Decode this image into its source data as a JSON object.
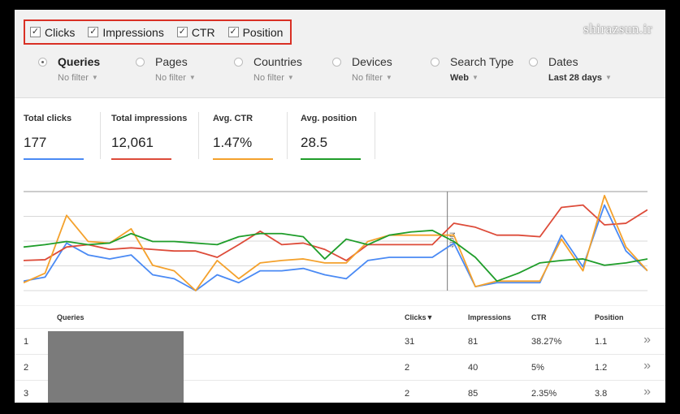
{
  "metric_toggles": [
    {
      "label": "Clicks",
      "checked": true
    },
    {
      "label": "Impressions",
      "checked": true
    },
    {
      "label": "CTR",
      "checked": true
    },
    {
      "label": "Position",
      "checked": true
    }
  ],
  "watermark": "shirazsun.ir",
  "filters": [
    {
      "label": "Queries",
      "sub": "No filter",
      "selected": true
    },
    {
      "label": "Pages",
      "sub": "No filter",
      "selected": false
    },
    {
      "label": "Countries",
      "sub": "No filter",
      "selected": false
    },
    {
      "label": "Devices",
      "sub": "No filter",
      "selected": false
    },
    {
      "label": "Search Type",
      "sub": "Web",
      "selected": false
    },
    {
      "label": "Dates",
      "sub": "Last 28 days",
      "selected": false
    }
  ],
  "summary": [
    {
      "title": "Total clicks",
      "value": "177",
      "color": "#4a8af4"
    },
    {
      "title": "Total impressions",
      "value": "12,061",
      "color": "#dd4b39"
    },
    {
      "title": "Avg. CTR",
      "value": "1.47%",
      "color": "#f4a12c"
    },
    {
      "title": "Avg. position",
      "value": "28.5",
      "color": "#1f9d2a"
    }
  ],
  "chart_data": {
    "type": "line",
    "annotation": "Note",
    "annotation_index": 20,
    "x": [
      0,
      1,
      2,
      3,
      4,
      5,
      6,
      7,
      8,
      9,
      10,
      11,
      12,
      13,
      14,
      15,
      16,
      17,
      18,
      19,
      20,
      21,
      22,
      23,
      24,
      25,
      26,
      27,
      28,
      29
    ],
    "ylim": [
      0,
      125
    ],
    "series": [
      {
        "color": "#4a8af4",
        "values": [
          12,
          17,
          60,
          45,
          40,
          45,
          20,
          15,
          0,
          20,
          10,
          25,
          25,
          28,
          20,
          15,
          38,
          42,
          42,
          42,
          60,
          5,
          10,
          10,
          10,
          70,
          30,
          108,
          50,
          25
        ]
      },
      {
        "color": "#dd4b39",
        "values": [
          38,
          39,
          55,
          58,
          52,
          54,
          52,
          50,
          50,
          42,
          58,
          75,
          58,
          60,
          52,
          38,
          58,
          58,
          58,
          58,
          85,
          80,
          70,
          70,
          68,
          105,
          108,
          83,
          85,
          102
        ]
      },
      {
        "color": "#f4a12c",
        "values": [
          10,
          22,
          95,
          62,
          60,
          78,
          32,
          25,
          0,
          38,
          15,
          35,
          38,
          40,
          35,
          35,
          62,
          70,
          70,
          70,
          70,
          5,
          12,
          12,
          12,
          65,
          25,
          120,
          55,
          25
        ]
      },
      {
        "color": "#1f9d2a",
        "values": [
          55,
          58,
          62,
          58,
          60,
          72,
          62,
          62,
          60,
          58,
          68,
          72,
          72,
          68,
          40,
          65,
          58,
          70,
          74,
          76,
          62,
          42,
          12,
          22,
          35,
          38,
          40,
          32,
          35,
          40
        ]
      }
    ]
  },
  "table": {
    "headers": {
      "queries": "Queries",
      "clicks": "Clicks▼",
      "impressions": "Impressions",
      "ctr": "CTR",
      "position": "Position"
    },
    "rows": [
      {
        "index": "1",
        "clicks": "31",
        "impressions": "81",
        "ctr": "38.27%",
        "position": "1.1"
      },
      {
        "index": "2",
        "clicks": "2",
        "impressions": "40",
        "ctr": "5%",
        "position": "1.2"
      },
      {
        "index": "3",
        "clicks": "2",
        "impressions": "85",
        "ctr": "2.35%",
        "position": "3.8"
      }
    ],
    "row_arrow": "»"
  }
}
